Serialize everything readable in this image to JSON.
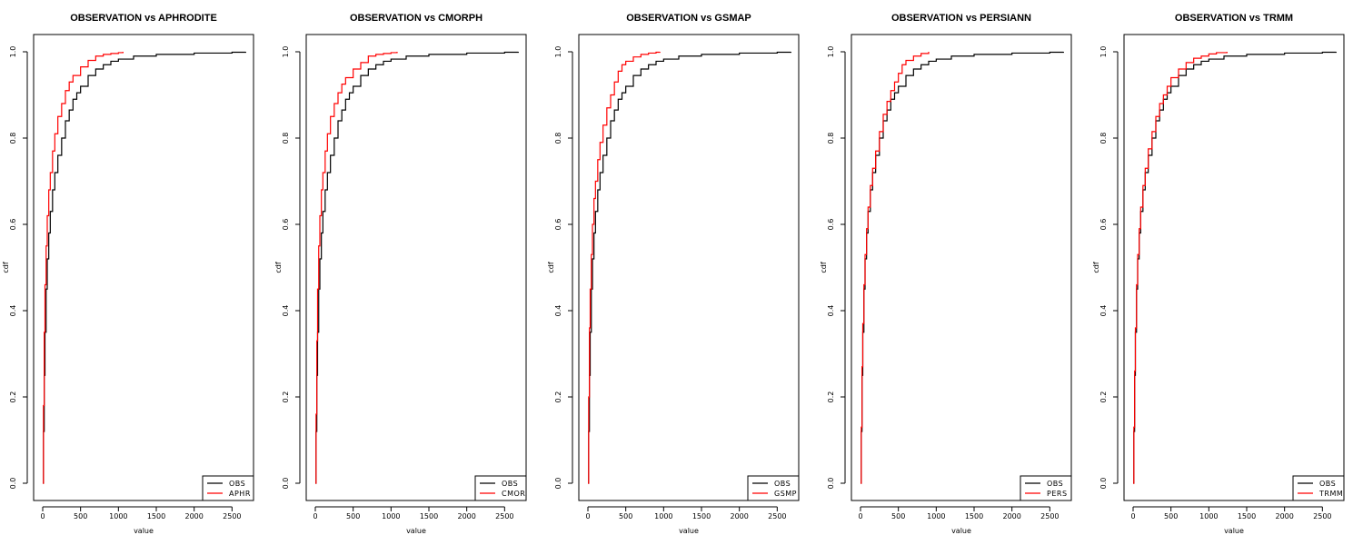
{
  "colors": {
    "obs": "#000000",
    "product": "#ff0000",
    "frame": "#000000",
    "background": "#ffffff"
  },
  "chart_data": [
    {
      "type": "line",
      "title": "OBSERVATION vs APHRODITE",
      "xlabel": "value",
      "ylabel": "cdf",
      "xlim": [
        0,
        2700
      ],
      "ylim": [
        0,
        1
      ],
      "xticks": [
        0,
        500,
        1000,
        1500,
        2000,
        2500
      ],
      "yticks": [
        0.0,
        0.2,
        0.4,
        0.6,
        0.8,
        1.0
      ],
      "ytick_labels": [
        "0.0",
        "0.2",
        "0.4",
        "0.6",
        "0.8",
        "1.0"
      ],
      "grid": false,
      "legend_position": "bottom-right",
      "series": [
        {
          "name": "OBS",
          "color": "#000000",
          "x": [
            0,
            10,
            20,
            30,
            45,
            60,
            80,
            100,
            130,
            160,
            200,
            250,
            300,
            350,
            400,
            450,
            500,
            600,
            700,
            800,
            900,
            1000,
            1200,
            1500,
            2000,
            2500,
            2680
          ],
          "y": [
            0,
            0.12,
            0.25,
            0.35,
            0.45,
            0.52,
            0.58,
            0.63,
            0.68,
            0.72,
            0.76,
            0.8,
            0.84,
            0.865,
            0.89,
            0.905,
            0.92,
            0.945,
            0.96,
            0.97,
            0.978,
            0.983,
            0.99,
            0.994,
            0.997,
            0.999,
            1.0
          ]
        },
        {
          "name": "APHR",
          "color": "#ff0000",
          "x": [
            0,
            10,
            20,
            30,
            45,
            60,
            80,
            100,
            130,
            160,
            200,
            250,
            300,
            350,
            400,
            500,
            600,
            700,
            800,
            900,
            1000,
            1060
          ],
          "y": [
            0,
            0.18,
            0.35,
            0.46,
            0.55,
            0.62,
            0.68,
            0.72,
            0.77,
            0.81,
            0.85,
            0.88,
            0.91,
            0.93,
            0.945,
            0.965,
            0.98,
            0.99,
            0.994,
            0.996,
            0.998,
            1.0
          ]
        }
      ]
    },
    {
      "type": "line",
      "title": "OBSERVATION vs CMORPH",
      "xlabel": "value",
      "ylabel": "cdf",
      "xlim": [
        0,
        2700
      ],
      "ylim": [
        0,
        1
      ],
      "xticks": [
        0,
        500,
        1000,
        1500,
        2000,
        2500
      ],
      "yticks": [
        0.0,
        0.2,
        0.4,
        0.6,
        0.8,
        1.0
      ],
      "ytick_labels": [
        "0.0",
        "0.2",
        "0.4",
        "0.6",
        "0.8",
        "1.0"
      ],
      "grid": false,
      "legend_position": "bottom-right",
      "series": [
        {
          "name": "OBS",
          "color": "#000000",
          "x": [
            0,
            10,
            20,
            30,
            45,
            60,
            80,
            100,
            130,
            160,
            200,
            250,
            300,
            350,
            400,
            450,
            500,
            600,
            700,
            800,
            900,
            1000,
            1200,
            1500,
            2000,
            2500,
            2680
          ],
          "y": [
            0,
            0.12,
            0.25,
            0.35,
            0.45,
            0.52,
            0.58,
            0.63,
            0.68,
            0.72,
            0.76,
            0.8,
            0.84,
            0.865,
            0.89,
            0.905,
            0.92,
            0.945,
            0.96,
            0.97,
            0.978,
            0.983,
            0.99,
            0.994,
            0.997,
            0.999,
            1.0
          ]
        },
        {
          "name": "CMOR",
          "color": "#ff0000",
          "x": [
            0,
            10,
            20,
            30,
            45,
            60,
            80,
            100,
            130,
            160,
            200,
            250,
            300,
            350,
            400,
            500,
            600,
            700,
            800,
            900,
            1000,
            1080
          ],
          "y": [
            0,
            0.16,
            0.33,
            0.45,
            0.55,
            0.62,
            0.68,
            0.72,
            0.77,
            0.81,
            0.85,
            0.88,
            0.905,
            0.925,
            0.94,
            0.96,
            0.975,
            0.99,
            0.994,
            0.996,
            0.998,
            1.0
          ]
        }
      ]
    },
    {
      "type": "line",
      "title": "OBSERVATION vs GSMAP",
      "xlabel": "value",
      "ylabel": "cdf",
      "xlim": [
        0,
        2700
      ],
      "ylim": [
        0,
        1
      ],
      "xticks": [
        0,
        500,
        1000,
        1500,
        2000,
        2500
      ],
      "yticks": [
        0.0,
        0.2,
        0.4,
        0.6,
        0.8,
        1.0
      ],
      "ytick_labels": [
        "0.0",
        "0.2",
        "0.4",
        "0.6",
        "0.8",
        "1.0"
      ],
      "grid": false,
      "legend_position": "bottom-right",
      "series": [
        {
          "name": "OBS",
          "color": "#000000",
          "x": [
            0,
            10,
            20,
            30,
            45,
            60,
            80,
            100,
            130,
            160,
            200,
            250,
            300,
            350,
            400,
            450,
            500,
            600,
            700,
            800,
            900,
            1000,
            1200,
            1500,
            2000,
            2500,
            2680
          ],
          "y": [
            0,
            0.12,
            0.25,
            0.35,
            0.45,
            0.52,
            0.58,
            0.63,
            0.68,
            0.72,
            0.76,
            0.8,
            0.84,
            0.865,
            0.89,
            0.905,
            0.92,
            0.945,
            0.96,
            0.97,
            0.978,
            0.983,
            0.99,
            0.994,
            0.997,
            0.999,
            1.0
          ]
        },
        {
          "name": "GSMP",
          "color": "#ff0000",
          "x": [
            0,
            10,
            20,
            30,
            45,
            60,
            80,
            100,
            130,
            160,
            200,
            250,
            300,
            350,
            400,
            450,
            500,
            600,
            700,
            800,
            900,
            950
          ],
          "y": [
            0,
            0.2,
            0.36,
            0.45,
            0.53,
            0.6,
            0.66,
            0.7,
            0.75,
            0.79,
            0.83,
            0.87,
            0.9,
            0.93,
            0.955,
            0.97,
            0.978,
            0.988,
            0.994,
            0.997,
            0.999,
            1.0
          ]
        }
      ]
    },
    {
      "type": "line",
      "title": "OBSERVATION vs PERSIANN",
      "xlabel": "value",
      "ylabel": "cdf",
      "xlim": [
        0,
        2700
      ],
      "ylim": [
        0,
        1
      ],
      "xticks": [
        0,
        500,
        1000,
        1500,
        2000,
        2500
      ],
      "yticks": [
        0.0,
        0.2,
        0.4,
        0.6,
        0.8,
        1.0
      ],
      "ytick_labels": [
        "0.0",
        "0.2",
        "0.4",
        "0.6",
        "0.8",
        "1.0"
      ],
      "grid": false,
      "legend_position": "bottom-right",
      "series": [
        {
          "name": "OBS",
          "color": "#000000",
          "x": [
            0,
            10,
            20,
            30,
            45,
            60,
            80,
            100,
            130,
            160,
            200,
            250,
            300,
            350,
            400,
            450,
            500,
            600,
            700,
            800,
            900,
            1000,
            1200,
            1500,
            2000,
            2500,
            2680
          ],
          "y": [
            0,
            0.12,
            0.25,
            0.35,
            0.45,
            0.52,
            0.58,
            0.63,
            0.68,
            0.72,
            0.76,
            0.8,
            0.84,
            0.865,
            0.89,
            0.905,
            0.92,
            0.945,
            0.96,
            0.97,
            0.978,
            0.983,
            0.99,
            0.994,
            0.997,
            0.999,
            1.0
          ]
        },
        {
          "name": "PERS",
          "color": "#ff0000",
          "x": [
            0,
            10,
            20,
            30,
            45,
            60,
            80,
            100,
            130,
            160,
            200,
            250,
            300,
            350,
            400,
            450,
            500,
            550,
            600,
            700,
            800,
            900
          ],
          "y": [
            0,
            0.13,
            0.27,
            0.37,
            0.46,
            0.53,
            0.59,
            0.64,
            0.69,
            0.73,
            0.77,
            0.815,
            0.855,
            0.885,
            0.91,
            0.93,
            0.95,
            0.97,
            0.98,
            0.99,
            0.996,
            1.0
          ]
        }
      ]
    },
    {
      "type": "line",
      "title": "OBSERVATION vs TRMM",
      "xlabel": "value",
      "ylabel": "cdf",
      "xlim": [
        0,
        2700
      ],
      "ylim": [
        0,
        1
      ],
      "xticks": [
        0,
        500,
        1000,
        1500,
        2000,
        2500
      ],
      "yticks": [
        0.0,
        0.2,
        0.4,
        0.6,
        0.8,
        1.0
      ],
      "ytick_labels": [
        "0.0",
        "0.2",
        "0.4",
        "0.6",
        "0.8",
        "1.0"
      ],
      "grid": false,
      "legend_position": "bottom-right",
      "series": [
        {
          "name": "OBS",
          "color": "#000000",
          "x": [
            0,
            10,
            20,
            30,
            45,
            60,
            80,
            100,
            130,
            160,
            200,
            250,
            300,
            350,
            400,
            450,
            500,
            600,
            700,
            800,
            900,
            1000,
            1200,
            1500,
            2000,
            2500,
            2680
          ],
          "y": [
            0,
            0.12,
            0.25,
            0.35,
            0.45,
            0.52,
            0.58,
            0.63,
            0.68,
            0.72,
            0.76,
            0.8,
            0.84,
            0.865,
            0.89,
            0.905,
            0.92,
            0.945,
            0.96,
            0.97,
            0.978,
            0.983,
            0.99,
            0.994,
            0.997,
            0.999,
            1.0
          ]
        },
        {
          "name": "TRMM",
          "color": "#ff0000",
          "x": [
            0,
            10,
            20,
            30,
            45,
            60,
            80,
            100,
            130,
            160,
            200,
            250,
            300,
            350,
            400,
            450,
            500,
            600,
            700,
            800,
            900,
            1000,
            1100,
            1240
          ],
          "y": [
            0,
            0.13,
            0.26,
            0.36,
            0.46,
            0.53,
            0.59,
            0.64,
            0.69,
            0.73,
            0.775,
            0.815,
            0.85,
            0.88,
            0.9,
            0.92,
            0.94,
            0.96,
            0.975,
            0.985,
            0.99,
            0.995,
            0.998,
            1.0
          ]
        }
      ]
    }
  ]
}
